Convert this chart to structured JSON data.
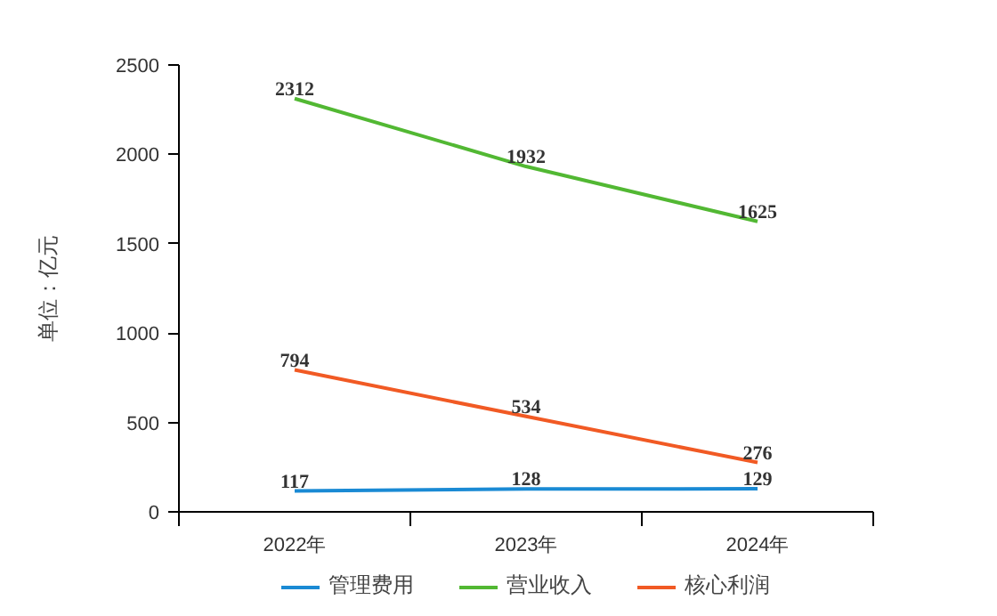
{
  "chart_data": {
    "type": "line",
    "ylabel": "单位：亿元",
    "categories": [
      "2022年",
      "2023年",
      "2024年"
    ],
    "series": [
      {
        "name": "管理费用",
        "color": "#1a8ad4",
        "values": [
          117,
          128,
          129
        ]
      },
      {
        "name": "营业收入",
        "color": "#52b833",
        "values": [
          2312,
          1932,
          1625
        ]
      },
      {
        "name": "核心利润",
        "color": "#f15a24",
        "values": [
          794,
          534,
          276
        ]
      }
    ],
    "ylim": [
      0,
      2500
    ],
    "yticks": [
      0,
      500,
      1000,
      1500,
      2000,
      2500
    ],
    "grid": false,
    "legend": "bottom",
    "data_labels": true,
    "marker": "none",
    "line_style": "solid"
  }
}
